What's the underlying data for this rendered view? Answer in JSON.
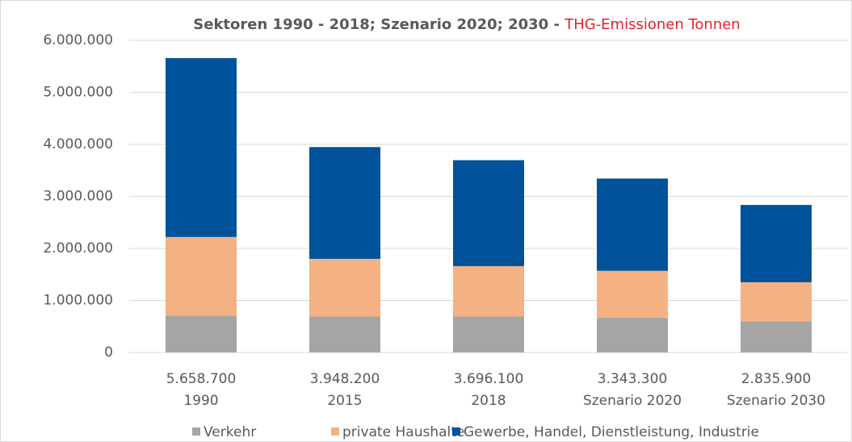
{
  "chart_data": {
    "type": "stacked_bar",
    "title": "Sektoren 1990 - 2018; Szenario 2020; 2030 -",
    "title_highlight": "THG-Emissionen Tonnen",
    "categories": [
      "1990",
      "2015",
      "2018",
      "Szenario 2020",
      "Szenario 2030"
    ],
    "total_labels": [
      "5.658.700",
      "3.948.200",
      "3.696.100",
      "3.343.300",
      "2.835.900"
    ],
    "series": [
      {
        "name": "Verkehr",
        "color": "#a5a5a5",
        "values": [
          710000,
          690000,
          690000,
          670000,
          600000
        ]
      },
      {
        "name": "private Haushalte",
        "color": "#f4b183",
        "values": [
          1510000,
          1110000,
          970000,
          900000,
          750000
        ]
      },
      {
        "name": "Gewerbe, Handel, Dienstleistung, Industrie",
        "color": "#00539b",
        "values": [
          3438700,
          2148200,
          2036100,
          1773300,
          1485900
        ]
      }
    ],
    "ylim": [
      0,
      6000000
    ],
    "yticks": [
      0,
      {
        "value": 1000000,
        "label": "1.000.000"
      },
      {
        "value": 2000000,
        "label": "2.000.000"
      },
      {
        "value": 3000000,
        "label": "3.000.000"
      },
      {
        "value": 4000000,
        "label": "4.000.000"
      },
      {
        "value": 5000000,
        "label": "5.000.000"
      },
      {
        "value": 6000000,
        "label": "6.000.000"
      }
    ],
    "grid": true
  }
}
